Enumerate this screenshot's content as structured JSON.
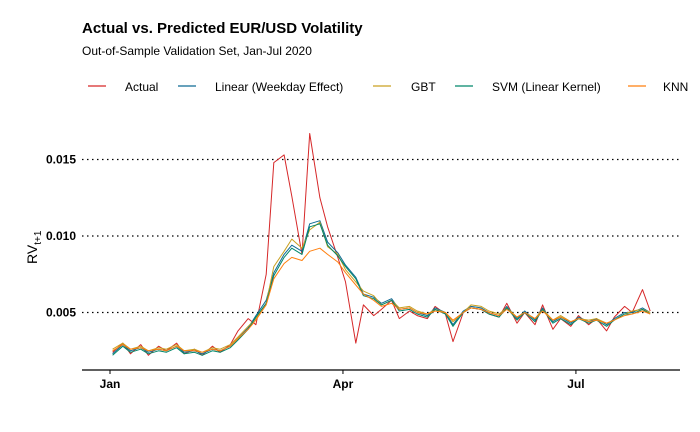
{
  "chart_data": {
    "type": "line",
    "title": "Actual vs. Predicted EUR/USD Volatility",
    "subtitle": "Out-of-Sample Validation Set, Jan-Jul 2020",
    "ylabel": "RV",
    "ylabel_subscript": "t+1",
    "xlabel": "",
    "legend_position": "top",
    "grid": "horizontal dotted major gridlines",
    "ylim": [
      0.00125,
      0.0169
    ],
    "xlim": [
      "2020-01-01",
      "2020-08-02"
    ],
    "y_ticks": [
      {
        "value": 0.005,
        "label": "0.005"
      },
      {
        "value": 0.01,
        "label": "0.010"
      },
      {
        "value": 0.015,
        "label": "0.015"
      }
    ],
    "x_ticks": [
      {
        "value": "2020-01-01",
        "label": "Jan"
      },
      {
        "value": "2020-04-01",
        "label": "Apr"
      },
      {
        "value": "2020-07-01",
        "label": "Jul"
      }
    ],
    "x": [
      "2020-01-02",
      "2020-01-06",
      "2020-01-09",
      "2020-01-13",
      "2020-01-16",
      "2020-01-20",
      "2020-01-23",
      "2020-01-27",
      "2020-01-30",
      "2020-02-03",
      "2020-02-06",
      "2020-02-10",
      "2020-02-13",
      "2020-02-17",
      "2020-02-20",
      "2020-02-24",
      "2020-02-27",
      "2020-03-02",
      "2020-03-05",
      "2020-03-09",
      "2020-03-12",
      "2020-03-16",
      "2020-03-19",
      "2020-03-23",
      "2020-03-26",
      "2020-03-30",
      "2020-04-02",
      "2020-04-06",
      "2020-04-09",
      "2020-04-13",
      "2020-04-16",
      "2020-04-20",
      "2020-04-23",
      "2020-04-27",
      "2020-04-30",
      "2020-05-04",
      "2020-05-07",
      "2020-05-11",
      "2020-05-14",
      "2020-05-18",
      "2020-05-21",
      "2020-05-25",
      "2020-05-28",
      "2020-06-01",
      "2020-06-04",
      "2020-06-08",
      "2020-06-11",
      "2020-06-15",
      "2020-06-18",
      "2020-06-22",
      "2020-06-25",
      "2020-06-29",
      "2020-07-02",
      "2020-07-06",
      "2020-07-09",
      "2020-07-13",
      "2020-07-16",
      "2020-07-20",
      "2020-07-23",
      "2020-07-27",
      "2020-07-30"
    ],
    "series": [
      {
        "name": "Actual",
        "color": "#d62728",
        "values": [
          0.0024,
          0.003,
          0.0023,
          0.0029,
          0.0022,
          0.0028,
          0.0025,
          0.003,
          0.0023,
          0.0026,
          0.0022,
          0.0028,
          0.0024,
          0.0029,
          0.0038,
          0.0046,
          0.0042,
          0.0075,
          0.0148,
          0.0153,
          0.0126,
          0.0088,
          0.0167,
          0.0125,
          0.0106,
          0.0086,
          0.007,
          0.003,
          0.0055,
          0.0048,
          0.0052,
          0.0058,
          0.0046,
          0.0051,
          0.0048,
          0.0046,
          0.0054,
          0.0049,
          0.0031,
          0.005,
          0.0053,
          0.0052,
          0.0049,
          0.0047,
          0.0056,
          0.0043,
          0.005,
          0.0042,
          0.0055,
          0.0039,
          0.0046,
          0.0041,
          0.0048,
          0.0042,
          0.0046,
          0.0038,
          0.0047,
          0.0054,
          0.005,
          0.0065,
          0.0051
        ]
      },
      {
        "name": "Linear (Weekday Effect)",
        "color": "#0e6a94",
        "values": [
          0.0023,
          0.0029,
          0.0025,
          0.0027,
          0.0024,
          0.0026,
          0.0025,
          0.0028,
          0.0024,
          0.0025,
          0.0023,
          0.0026,
          0.0025,
          0.0028,
          0.0033,
          0.004,
          0.0048,
          0.0058,
          0.0076,
          0.0088,
          0.0094,
          0.009,
          0.0108,
          0.011,
          0.0096,
          0.0089,
          0.0081,
          0.0073,
          0.0062,
          0.006,
          0.0056,
          0.0059,
          0.0052,
          0.0053,
          0.005,
          0.0048,
          0.0053,
          0.005,
          0.0042,
          0.0051,
          0.0054,
          0.0053,
          0.005,
          0.0048,
          0.0054,
          0.0046,
          0.0051,
          0.0045,
          0.0053,
          0.0044,
          0.0047,
          0.0043,
          0.0047,
          0.0044,
          0.0046,
          0.0042,
          0.0046,
          0.005,
          0.005,
          0.0053,
          0.005
        ]
      },
      {
        "name": "GBT",
        "color": "#c9a020",
        "values": [
          0.0026,
          0.003,
          0.0026,
          0.0028,
          0.0025,
          0.0027,
          0.0026,
          0.0029,
          0.0025,
          0.0026,
          0.0024,
          0.0027,
          0.0026,
          0.0029,
          0.0034,
          0.0041,
          0.0046,
          0.0056,
          0.008,
          0.009,
          0.0098,
          0.0092,
          0.0104,
          0.0109,
          0.0093,
          0.0088,
          0.0078,
          0.007,
          0.0064,
          0.0061,
          0.0055,
          0.0058,
          0.0053,
          0.0054,
          0.0051,
          0.0049,
          0.0052,
          0.005,
          0.0044,
          0.005,
          0.0055,
          0.0054,
          0.0051,
          0.0049,
          0.0053,
          0.0047,
          0.005,
          0.0046,
          0.0052,
          0.0045,
          0.0048,
          0.0044,
          0.0046,
          0.0045,
          0.0046,
          0.0043,
          0.0045,
          0.0049,
          0.0051,
          0.0052,
          0.005
        ]
      },
      {
        "name": "SVM (Linear Kernel)",
        "color": "#00876a",
        "values": [
          0.0022,
          0.0028,
          0.0024,
          0.0026,
          0.0023,
          0.0025,
          0.0024,
          0.0027,
          0.0023,
          0.0024,
          0.0022,
          0.0025,
          0.0024,
          0.0027,
          0.0032,
          0.0039,
          0.0047,
          0.0056,
          0.0074,
          0.0086,
          0.0092,
          0.0088,
          0.0106,
          0.0108,
          0.0094,
          0.0087,
          0.008,
          0.0072,
          0.0061,
          0.0059,
          0.0055,
          0.0058,
          0.0051,
          0.0052,
          0.0049,
          0.0047,
          0.0052,
          0.0049,
          0.0041,
          0.005,
          0.0053,
          0.0052,
          0.0049,
          0.0047,
          0.0053,
          0.0045,
          0.005,
          0.0044,
          0.0052,
          0.0043,
          0.0046,
          0.0042,
          0.0046,
          0.0043,
          0.0045,
          0.0041,
          0.0045,
          0.0049,
          0.0049,
          0.0052,
          0.0049
        ]
      },
      {
        "name": "KNN",
        "color": "#ff7f0e",
        "values": [
          0.0025,
          0.0029,
          0.0026,
          0.0027,
          0.0025,
          0.0026,
          0.0025,
          0.0028,
          0.0025,
          0.0025,
          0.0024,
          0.0026,
          0.0025,
          0.0028,
          0.0033,
          0.0039,
          0.0045,
          0.0055,
          0.0072,
          0.0082,
          0.0086,
          0.0084,
          0.009,
          0.0092,
          0.0088,
          0.0083,
          0.0076,
          0.0068,
          0.0062,
          0.0058,
          0.0054,
          0.0056,
          0.0052,
          0.0053,
          0.005,
          0.0049,
          0.0051,
          0.005,
          0.0045,
          0.005,
          0.0053,
          0.0052,
          0.005,
          0.0048,
          0.0052,
          0.0047,
          0.005,
          0.0046,
          0.0051,
          0.0045,
          0.0047,
          0.0044,
          0.0046,
          0.0044,
          0.0045,
          0.0043,
          0.0045,
          0.0048,
          0.0049,
          0.0051,
          0.0049
        ]
      }
    ]
  }
}
